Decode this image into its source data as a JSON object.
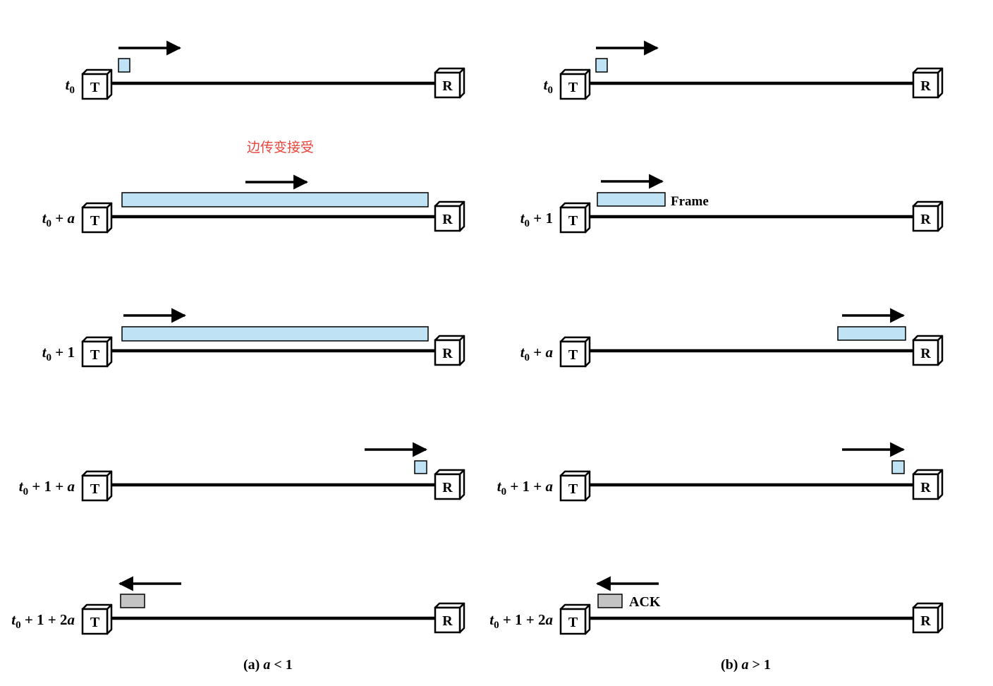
{
  "colors": {
    "frame": "#bfe3f5",
    "ack": "#c4c4c4",
    "annotation": "#e8453c",
    "line": "#000000"
  },
  "station_labels": {
    "transmitter": "T",
    "receiver": "R"
  },
  "panels": [
    {
      "caption": {
        "prefix": "(a) ",
        "var": "a",
        "rest": " < 1"
      },
      "annotation": "边传变接受",
      "rows": [
        {
          "time": {
            "sub": "0",
            "rest": "",
            "var": ""
          }
        },
        {
          "time": {
            "sub": "0",
            "rest": " + ",
            "var": "a"
          }
        },
        {
          "time": {
            "sub": "0",
            "rest": " + 1",
            "var": ""
          }
        },
        {
          "time": {
            "sub": "0",
            "rest": " + 1 + ",
            "var": "a"
          }
        },
        {
          "time": {
            "sub": "0",
            "rest": " + 1 + 2",
            "var": "a"
          }
        }
      ]
    },
    {
      "caption": {
        "prefix": "(b) ",
        "var": "a",
        "rest": " > 1"
      },
      "annotation": "",
      "rows": [
        {
          "time": {
            "sub": "0",
            "rest": "",
            "var": ""
          }
        },
        {
          "time": {
            "sub": "0",
            "rest": " + 1",
            "var": ""
          },
          "label": "Frame"
        },
        {
          "time": {
            "sub": "0",
            "rest": " + ",
            "var": "a"
          }
        },
        {
          "time": {
            "sub": "0",
            "rest": " + 1 + ",
            "var": "a"
          }
        },
        {
          "time": {
            "sub": "0",
            "rest": " + 1 + 2",
            "var": "a"
          },
          "label": "ACK"
        }
      ]
    }
  ]
}
